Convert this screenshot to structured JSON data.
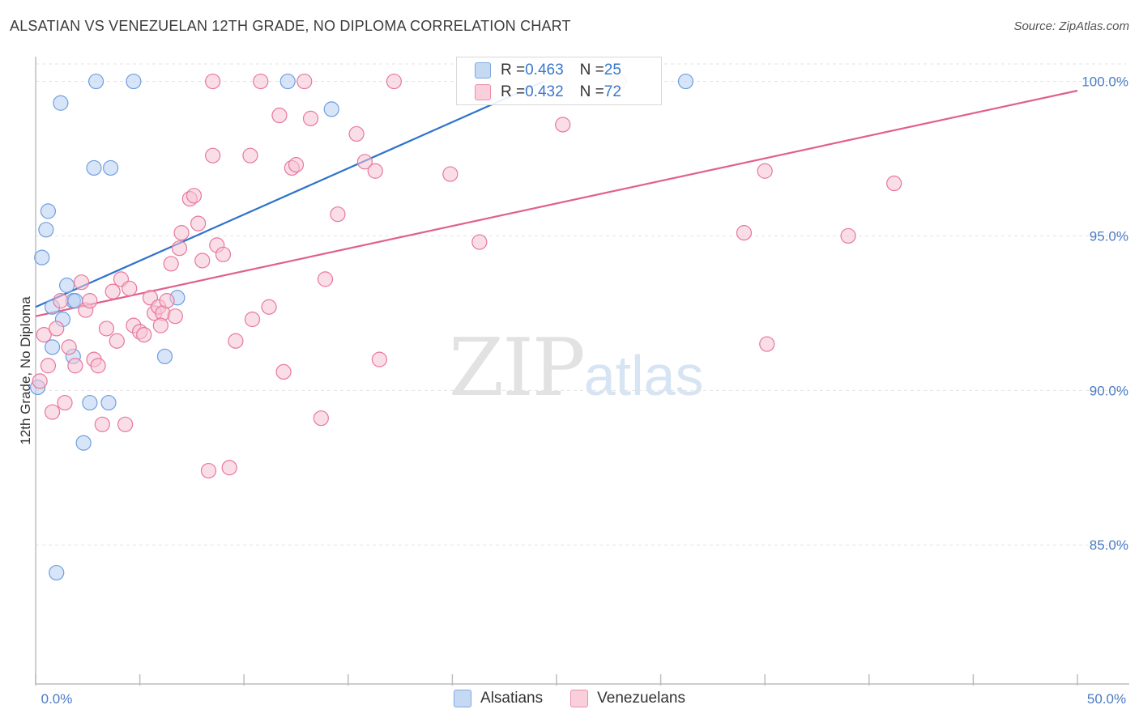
{
  "header": {
    "title": "ALSATIAN VS VENEZUELAN 12TH GRADE, NO DIPLOMA CORRELATION CHART",
    "source": "Source: ZipAtlas.com"
  },
  "watermark": {
    "zip": "ZIP",
    "atlas": "atlas"
  },
  "legend_top": {
    "rows": [
      {
        "r_label": "R = ",
        "r_value": "0.463",
        "n_label": "N = ",
        "n_value": "25",
        "color": "#aecbf0"
      },
      {
        "r_label": "R = ",
        "r_value": "0.432",
        "n_label": "N = ",
        "n_value": "72",
        "color": "#f7bfd0"
      }
    ]
  },
  "legend_bottom": {
    "items": [
      {
        "label": "Alsatians",
        "color": "#c5d9f3"
      },
      {
        "label": "Venezuelans",
        "color": "#f9cfdc"
      }
    ]
  },
  "chart_data": {
    "type": "scatter",
    "title": "ALSATIAN VS VENEZUELAN 12TH GRADE, NO DIPLOMA CORRELATION CHART",
    "xlabel": "",
    "ylabel": "12th Grade, No Diploma",
    "xlim": [
      0,
      50
    ],
    "ylim": [
      80.5,
      100.8
    ],
    "x_tick_labels": [
      "0.0%",
      "50.0%"
    ],
    "y_ticks": [
      85,
      90,
      95,
      100
    ],
    "y_tick_labels": [
      "85.0%",
      "90.0%",
      "95.0%",
      "100.0%"
    ],
    "grid": true,
    "series": [
      {
        "name": "Alsatians",
        "color": "#6f9fe0",
        "fill": "#b8d0f2",
        "points": [
          [
            0.1,
            90.1
          ],
          [
            0.5,
            95.2
          ],
          [
            0.6,
            95.8
          ],
          [
            0.3,
            94.3
          ],
          [
            1.2,
            99.3
          ],
          [
            1.5,
            93.4
          ],
          [
            0.8,
            92.7
          ],
          [
            1.3,
            92.3
          ],
          [
            0.8,
            91.4
          ],
          [
            1.8,
            92.9
          ],
          [
            1.8,
            91.1
          ],
          [
            2.3,
            88.3
          ],
          [
            2.6,
            89.6
          ],
          [
            3.5,
            89.6
          ],
          [
            2.8,
            97.2
          ],
          [
            3.6,
            97.2
          ],
          [
            2.9,
            100.0
          ],
          [
            4.7,
            100.0
          ],
          [
            6.2,
            91.1
          ],
          [
            6.8,
            93.0
          ],
          [
            12.1,
            100.0
          ],
          [
            14.2,
            99.1
          ],
          [
            31.2,
            100.0
          ],
          [
            1.0,
            84.1
          ],
          [
            1.9,
            92.9
          ]
        ],
        "trend": {
          "x": [
            0,
            24.4
          ],
          "y": [
            92.7,
            100.0
          ]
        }
      },
      {
        "name": "Venezuelans",
        "color": "#e8779c",
        "fill": "#f6c3d4",
        "points": [
          [
            0.2,
            90.3
          ],
          [
            0.4,
            91.8
          ],
          [
            0.6,
            90.8
          ],
          [
            0.8,
            89.3
          ],
          [
            1.0,
            92.0
          ],
          [
            1.2,
            92.9
          ],
          [
            1.4,
            89.6
          ],
          [
            1.6,
            91.4
          ],
          [
            1.9,
            90.8
          ],
          [
            2.2,
            93.5
          ],
          [
            2.4,
            92.6
          ],
          [
            2.6,
            92.9
          ],
          [
            2.8,
            91.0
          ],
          [
            3.0,
            90.8
          ],
          [
            3.2,
            88.9
          ],
          [
            3.4,
            92.0
          ],
          [
            3.7,
            93.2
          ],
          [
            3.9,
            91.6
          ],
          [
            4.1,
            93.6
          ],
          [
            4.3,
            88.9
          ],
          [
            4.5,
            93.3
          ],
          [
            4.7,
            92.1
          ],
          [
            5.0,
            91.9
          ],
          [
            5.2,
            91.8
          ],
          [
            5.5,
            93.0
          ],
          [
            5.7,
            92.5
          ],
          [
            5.9,
            92.7
          ],
          [
            6.1,
            92.5
          ],
          [
            6.3,
            92.9
          ],
          [
            6.5,
            94.1
          ],
          [
            6.7,
            92.4
          ],
          [
            6.9,
            94.6
          ],
          [
            7.0,
            95.1
          ],
          [
            7.4,
            96.2
          ],
          [
            7.6,
            96.3
          ],
          [
            7.8,
            95.4
          ],
          [
            8.0,
            94.2
          ],
          [
            8.3,
            87.4
          ],
          [
            8.5,
            97.6
          ],
          [
            8.7,
            94.7
          ],
          [
            9.0,
            94.4
          ],
          [
            9.3,
            87.5
          ],
          [
            9.6,
            91.6
          ],
          [
            10.3,
            97.6
          ],
          [
            10.4,
            92.3
          ],
          [
            10.8,
            100.0
          ],
          [
            11.2,
            92.7
          ],
          [
            11.7,
            98.9
          ],
          [
            11.9,
            90.6
          ],
          [
            12.3,
            97.2
          ],
          [
            12.5,
            97.3
          ],
          [
            12.9,
            100.0
          ],
          [
            13.2,
            98.8
          ],
          [
            13.7,
            89.1
          ],
          [
            13.9,
            93.6
          ],
          [
            14.5,
            95.7
          ],
          [
            15.4,
            98.3
          ],
          [
            15.8,
            97.4
          ],
          [
            16.3,
            97.1
          ],
          [
            16.5,
            91.0
          ],
          [
            17.2,
            100.0
          ],
          [
            19.9,
            97.0
          ],
          [
            21.3,
            94.8
          ],
          [
            25.3,
            98.6
          ],
          [
            28.0,
            100.0
          ],
          [
            34.0,
            95.1
          ],
          [
            35.0,
            97.1
          ],
          [
            35.1,
            91.5
          ],
          [
            39.0,
            95.0
          ],
          [
            41.2,
            96.7
          ],
          [
            8.5,
            100.0
          ],
          [
            6.0,
            92.1
          ]
        ],
        "trend": {
          "x": [
            0,
            50
          ],
          "y": [
            92.4,
            99.7
          ]
        }
      }
    ]
  }
}
